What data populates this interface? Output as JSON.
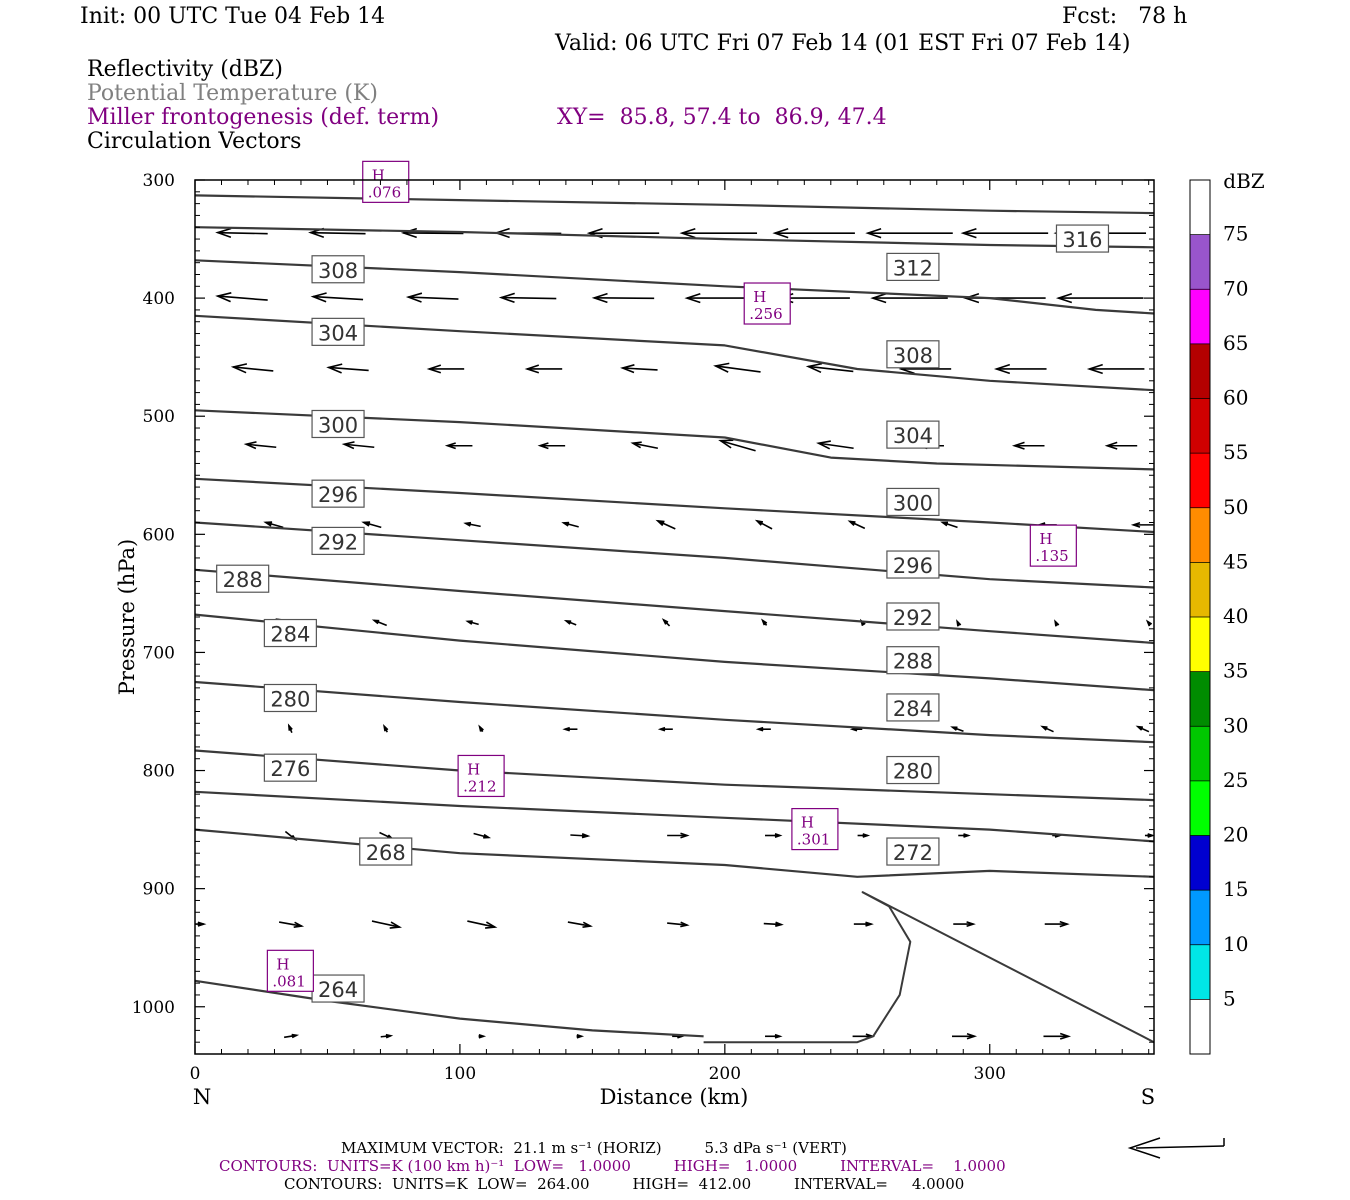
{
  "header": {
    "init": "Init: 00 UTC Tue 04 Feb 14",
    "fcst": "Fcst:   78 h",
    "valid": "Valid: 06 UTC Fri 07 Feb 14 (01 EST Fri 07 Feb 14)",
    "fields": [
      "Reflectivity (dBZ)",
      "Potential Temperature (K)",
      "Miller frontogenesis (def. term)",
      "Circulation Vectors"
    ],
    "xy": "XY=  85.8, 57.4 to  86.9, 47.4"
  },
  "colors": {
    "theta": "#3a3a3a",
    "fronto": "#800080",
    "vector": "#000000",
    "grid": "#000000"
  },
  "chart_data": {
    "type": "line",
    "xlabel": "Distance (km)",
    "ylabel": "Pressure (hPa)",
    "xlim": [
      0,
      362
    ],
    "ylim": [
      1040,
      300
    ],
    "y_scale": "linear-inverted",
    "x_ticks": [
      0,
      100,
      200,
      300
    ],
    "y_ticks": [
      300,
      400,
      500,
      600,
      700,
      800,
      900,
      1000
    ],
    "x_end_labels": {
      "left": "N",
      "right": "S"
    },
    "theta_contours": [
      {
        "level": 316,
        "x": [
          0,
          100,
          200,
          300,
          362
        ],
        "y": [
          313,
          317,
          321,
          326,
          328
        ]
      },
      {
        "level": 312,
        "x": [
          0,
          100,
          200,
          300,
          362
        ],
        "y": [
          340,
          344,
          350,
          355,
          357
        ]
      },
      {
        "level": 308,
        "x": [
          0,
          100,
          200,
          300,
          340,
          362
        ],
        "y": [
          368,
          378,
          390,
          400,
          410,
          413
        ]
      },
      {
        "level": 304,
        "x": [
          0,
          100,
          200,
          250,
          300,
          362
        ],
        "y": [
          415,
          428,
          440,
          460,
          470,
          478
        ]
      },
      {
        "level": 300,
        "x": [
          0,
          100,
          200,
          240,
          280,
          362
        ],
        "y": [
          495,
          505,
          518,
          535,
          540,
          545
        ]
      },
      {
        "level": 296,
        "x": [
          0,
          100,
          200,
          300,
          362
        ],
        "y": [
          553,
          565,
          578,
          590,
          598
        ]
      },
      {
        "level": 292,
        "x": [
          0,
          100,
          200,
          300,
          362
        ],
        "y": [
          590,
          605,
          620,
          638,
          645
        ]
      },
      {
        "level": 288,
        "x": [
          0,
          100,
          200,
          300,
          362
        ],
        "y": [
          630,
          648,
          665,
          682,
          692
        ]
      },
      {
        "level": 284,
        "x": [
          0,
          100,
          200,
          300,
          362
        ],
        "y": [
          668,
          690,
          708,
          722,
          732
        ]
      },
      {
        "level": 280,
        "x": [
          0,
          100,
          200,
          300,
          362
        ],
        "y": [
          725,
          742,
          757,
          770,
          776
        ]
      },
      {
        "level": 276,
        "x": [
          0,
          100,
          200,
          300,
          362
        ],
        "y": [
          783,
          800,
          812,
          820,
          825
        ]
      },
      {
        "level": 272,
        "x": [
          0,
          100,
          200,
          300,
          362
        ],
        "y": [
          818,
          830,
          840,
          850,
          860
        ]
      },
      {
        "level": 268,
        "x": [
          0,
          100,
          200,
          250,
          300,
          362
        ],
        "y": [
          850,
          870,
          880,
          890,
          885,
          890
        ]
      },
      {
        "level": 264,
        "x": [
          0,
          50,
          100,
          150,
          192
        ],
        "y": [
          978,
          995,
          1010,
          1020,
          1025
        ]
      }
    ],
    "theta_labels": [
      {
        "text": "316",
        "x": 335,
        "y": 350
      },
      {
        "text": "312",
        "x": 271,
        "y": 374
      },
      {
        "text": "308",
        "x": 54,
        "y": 376
      },
      {
        "text": "308",
        "x": 271,
        "y": 448
      },
      {
        "text": "304",
        "x": 54,
        "y": 429
      },
      {
        "text": "304",
        "x": 271,
        "y": 516
      },
      {
        "text": "300",
        "x": 54,
        "y": 507
      },
      {
        "text": "300",
        "x": 271,
        "y": 573
      },
      {
        "text": "296",
        "x": 54,
        "y": 566
      },
      {
        "text": "296",
        "x": 271,
        "y": 626
      },
      {
        "text": "292",
        "x": 54,
        "y": 606
      },
      {
        "text": "292",
        "x": 271,
        "y": 670
      },
      {
        "text": "288",
        "x": 18,
        "y": 638
      },
      {
        "text": "288",
        "x": 271,
        "y": 707
      },
      {
        "text": "284",
        "x": 36,
        "y": 684
      },
      {
        "text": "284",
        "x": 271,
        "y": 747
      },
      {
        "text": "280",
        "x": 36,
        "y": 739
      },
      {
        "text": "280",
        "x": 271,
        "y": 800
      },
      {
        "text": "276",
        "x": 36,
        "y": 798
      },
      {
        "text": "272",
        "x": 271,
        "y": 869
      },
      {
        "text": "268",
        "x": 72,
        "y": 869
      },
      {
        "text": "264",
        "x": 54,
        "y": 985
      }
    ],
    "fronto_maxima": [
      {
        "label": "H",
        "value": ".076",
        "x": 72,
        "y": 302
      },
      {
        "label": "H",
        "value": ".256",
        "x": 216,
        "y": 405
      },
      {
        "label": "H",
        "value": ".135",
        "x": 324,
        "y": 610
      },
      {
        "label": "H",
        "value": ".212",
        "x": 108,
        "y": 805
      },
      {
        "label": "H",
        "value": ".301",
        "x": 234,
        "y": 850
      },
      {
        "label": "H",
        "value": ".081",
        "x": 36,
        "y": 970
      }
    ],
    "vectors": {
      "rows": [
        {
          "y": 345,
          "x": [
            18,
            54,
            90,
            126,
            162,
            198,
            234,
            270,
            306,
            342
          ],
          "u": [
            -1.0,
            -1.1,
            -1.2,
            -1.3,
            -1.4,
            -1.5,
            -1.6,
            -1.7,
            -1.7,
            -1.8
          ],
          "w": [
            0.02,
            0.02,
            0.01,
            0.01,
            0.0,
            0.0,
            0.0,
            0.0,
            0.0,
            0.0
          ]
        },
        {
          "y": 400,
          "x": [
            18,
            54,
            90,
            126,
            162,
            198,
            234,
            270,
            306,
            342
          ],
          "u": [
            -1.0,
            -1.0,
            -1.0,
            -1.1,
            -1.2,
            -1.3,
            -1.4,
            -1.5,
            -1.6,
            -1.7
          ],
          "w": [
            0.08,
            0.06,
            0.04,
            0.02,
            0.01,
            0.0,
            0.0,
            0.0,
            0.0,
            0.0
          ]
        },
        {
          "y": 460,
          "x": [
            22,
            58,
            95,
            132,
            168,
            205,
            240,
            276,
            312,
            348
          ],
          "u": [
            -0.8,
            -0.8,
            -0.7,
            -0.7,
            -0.7,
            -0.9,
            -0.9,
            -1.0,
            -1.0,
            -1.1
          ],
          "w": [
            0.08,
            0.06,
            0.0,
            0.0,
            0.04,
            0.12,
            0.1,
            0.0,
            0.0,
            0.0
          ]
        },
        {
          "y": 525,
          "x": [
            25,
            62,
            100,
            135,
            170,
            205,
            242,
            278,
            315,
            350
          ],
          "u": [
            -0.6,
            -0.6,
            -0.5,
            -0.5,
            -0.5,
            -0.7,
            -0.7,
            -0.5,
            -0.6,
            -0.6
          ],
          "w": [
            0.06,
            0.06,
            0.0,
            0.0,
            0.1,
            0.2,
            0.1,
            0.0,
            0.0,
            0.0
          ]
        },
        {
          "y": 592,
          "x": [
            30,
            67,
            105,
            142,
            178,
            215,
            250,
            285,
            322,
            358
          ],
          "u": [
            -0.35,
            -0.35,
            -0.3,
            -0.3,
            -0.35,
            -0.3,
            -0.3,
            -0.3,
            -0.35,
            -0.4
          ],
          "w": [
            0.1,
            0.1,
            0.06,
            0.08,
            0.16,
            0.16,
            0.14,
            0.1,
            0.0,
            0.0
          ]
        },
        {
          "y": 675,
          "x": [
            34,
            70,
            105,
            142,
            178,
            215,
            252,
            288,
            325,
            360
          ],
          "u": [
            -0.3,
            -0.25,
            -0.22,
            -0.2,
            -0.12,
            -0.08,
            -0.05,
            -0.03,
            -0.03,
            -0.05
          ],
          "w": [
            0.14,
            0.1,
            0.06,
            0.08,
            0.12,
            0.1,
            0.08,
            0.06,
            0.06,
            0.06
          ]
        },
        {
          "y": 765,
          "x": [
            36,
            72,
            108,
            142,
            178,
            215,
            250,
            288,
            322,
            358
          ],
          "u": [
            -0.06,
            -0.06,
            -0.06,
            -0.25,
            -0.25,
            -0.25,
            -0.2,
            -0.22,
            -0.22,
            -0.22
          ],
          "w": [
            0.14,
            0.12,
            0.1,
            0.0,
            0.0,
            0.0,
            0.0,
            0.08,
            0.1,
            0.1
          ]
        },
        {
          "y": 855,
          "x": [
            36,
            72,
            108,
            145,
            182,
            218,
            252,
            290,
            325,
            360
          ],
          "u": [
            0.2,
            0.25,
            0.3,
            0.35,
            0.4,
            0.3,
            0.2,
            0.2,
            0.15,
            0.15
          ],
          "w": [
            -0.16,
            -0.12,
            -0.08,
            -0.02,
            0.0,
            0.0,
            0.0,
            0.0,
            0.0,
            0.0
          ]
        },
        {
          "y": 930,
          "x": [
            0,
            36,
            72,
            108,
            145,
            182,
            218,
            252,
            290,
            325
          ],
          "u": [
            0.35,
            0.45,
            0.55,
            0.55,
            0.45,
            0.4,
            0.35,
            0.35,
            0.4,
            0.45
          ],
          "w": [
            0.0,
            -0.08,
            -0.12,
            -0.12,
            -0.08,
            -0.04,
            -0.02,
            0.0,
            0.0,
            0.0
          ]
        },
        {
          "y": 1025,
          "x": [
            36,
            72,
            108,
            145,
            182,
            218,
            252,
            290,
            325
          ],
          "u": [
            0.25,
            0.2,
            0.1,
            0.1,
            0.2,
            0.3,
            0.4,
            0.45,
            0.5
          ],
          "w": [
            0.04,
            0.02,
            0.0,
            0.0,
            0.0,
            0.0,
            0.0,
            0.0,
            0.0
          ]
        }
      ]
    },
    "ground_outline": {
      "x": [
        192,
        250,
        256,
        266,
        270,
        266,
        262,
        252,
        362
      ],
      "y": [
        1030,
        1030,
        1025,
        990,
        945,
        930,
        915,
        903,
        1030
      ]
    },
    "colorbar": {
      "title": "dBZ",
      "levels": [
        5,
        10,
        15,
        20,
        25,
        30,
        35,
        40,
        45,
        50,
        55,
        60,
        65,
        70,
        75
      ],
      "colors": [
        "#ffffff",
        "#00e6e6",
        "#0099ff",
        "#0000d0",
        "#00ff00",
        "#00c800",
        "#008c00",
        "#ffff00",
        "#e6b800",
        "#ff8c00",
        "#ff0000",
        "#d00000",
        "#b40000",
        "#ff00ff",
        "#9955cc",
        "#ffffff"
      ]
    }
  },
  "footer": {
    "max_vector": "MAXIMUM VECTOR:  21.1 m s⁻¹ (HORIZ)         5.3 dPa s⁻¹ (VERT)",
    "contours_fronto": "CONTOURS:  UNITS=K (100 km h)⁻¹  LOW=   1.0000         HIGH=   1.0000         INTERVAL=    1.0000",
    "contours_theta": "CONTOURS:  UNITS=K  LOW=  264.00         HIGH=  412.00         INTERVAL=     4.0000"
  }
}
